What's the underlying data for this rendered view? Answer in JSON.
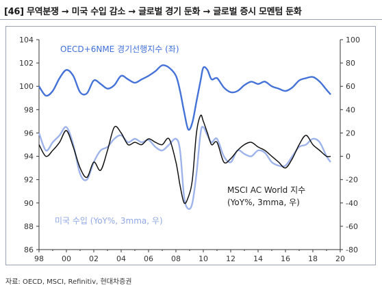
{
  "title": "[46] 무역분쟁 → 미국 수입 감소 → 글로벌 경기 둔화 → 글로벌 증시 모멘텀 둔화",
  "source": "자료: OECD, MSCI, Refinitiv, 현대차증권",
  "colors": {
    "oecd": "#4472d9",
    "msci": "#111111",
    "imports": "#9db3ea"
  },
  "chart_data": {
    "type": "line",
    "x_tick_labels": [
      "98",
      "00",
      "02",
      "04",
      "06",
      "08",
      "10",
      "12",
      "14",
      "16",
      "18",
      "20"
    ],
    "x_range": [
      1998,
      2020
    ],
    "left_axis": {
      "range": [
        86,
        104
      ],
      "ticks": [
        86,
        88,
        90,
        92,
        94,
        96,
        98,
        100,
        102,
        104
      ]
    },
    "right_axis": {
      "range": [
        -80,
        100
      ],
      "ticks": [
        -80,
        -60,
        -40,
        -20,
        0,
        20,
        40,
        60,
        80,
        100
      ]
    },
    "grid": false,
    "annotations": {
      "oecd": "OECD+6NME 경기선행지수 (좌)",
      "msci_line1": "MSCI AC World 지수",
      "msci_line2": "(YoY%, 3mma, 우)",
      "imports": "미국 수입 (YoY%, 3mma, 우)"
    },
    "series": [
      {
        "name": "OECD+6NME 경기선행지수 (좌)",
        "axis": "left",
        "x": [
          1998.0,
          1998.5,
          1999.0,
          1999.5,
          2000.0,
          2000.5,
          2001.0,
          2001.5,
          2002.0,
          2002.5,
          2003.0,
          2003.5,
          2004.0,
          2004.5,
          2005.0,
          2005.5,
          2006.0,
          2006.5,
          2007.0,
          2007.5,
          2008.0,
          2008.3,
          2008.6,
          2008.9,
          2009.2,
          2009.5,
          2009.8,
          2010.0,
          2010.3,
          2010.6,
          2011.0,
          2011.5,
          2012.0,
          2012.5,
          2013.0,
          2013.5,
          2014.0,
          2014.5,
          2015.0,
          2015.5,
          2016.0,
          2016.5,
          2017.0,
          2017.5,
          2018.0,
          2018.5,
          2019.0,
          2019.3
        ],
        "y": [
          100.0,
          99.2,
          99.6,
          100.7,
          101.4,
          100.9,
          99.5,
          99.4,
          100.5,
          100.2,
          99.8,
          100.1,
          100.9,
          100.6,
          100.3,
          100.6,
          100.9,
          101.3,
          101.8,
          101.6,
          100.9,
          99.6,
          97.8,
          96.3,
          96.9,
          98.7,
          100.5,
          101.6,
          101.4,
          100.6,
          100.7,
          99.9,
          99.5,
          99.6,
          100.1,
          100.4,
          100.2,
          100.4,
          100.0,
          99.8,
          99.6,
          99.9,
          100.5,
          100.7,
          100.8,
          100.4,
          99.7,
          99.3
        ]
      },
      {
        "name": "MSCI AC World 지수 (YoY%, 3mma, 우)",
        "axis": "right",
        "x": [
          1998.0,
          1998.5,
          1999.0,
          1999.5,
          2000.0,
          2000.5,
          2001.0,
          2001.5,
          2002.0,
          2002.5,
          2003.0,
          2003.5,
          2004.0,
          2004.5,
          2005.0,
          2005.5,
          2006.0,
          2006.5,
          2007.0,
          2007.5,
          2008.0,
          2008.3,
          2008.6,
          2008.9,
          2009.2,
          2009.5,
          2009.8,
          2010.0,
          2010.3,
          2010.6,
          2011.0,
          2011.5,
          2012.0,
          2012.5,
          2013.0,
          2013.5,
          2014.0,
          2014.5,
          2015.0,
          2015.5,
          2016.0,
          2016.5,
          2017.0,
          2017.5,
          2018.0,
          2018.5,
          2019.0,
          2019.3
        ],
        "y": [
          10,
          0,
          5,
          12,
          22,
          8,
          -10,
          -18,
          -5,
          -12,
          5,
          25,
          20,
          10,
          12,
          10,
          15,
          12,
          10,
          15,
          -5,
          -25,
          -40,
          -35,
          -20,
          20,
          35,
          30,
          20,
          10,
          12,
          -5,
          -2,
          5,
          10,
          12,
          8,
          5,
          0,
          -5,
          -10,
          -2,
          10,
          18,
          10,
          5,
          0,
          0
        ]
      },
      {
        "name": "미국 수입 (YoY%, 3mma, 우)",
        "axis": "right",
        "x": [
          1998.0,
          1998.5,
          1999.0,
          1999.5,
          2000.0,
          2000.5,
          2001.0,
          2001.5,
          2002.0,
          2002.5,
          2003.0,
          2003.5,
          2004.0,
          2004.5,
          2005.0,
          2005.5,
          2006.0,
          2006.5,
          2007.0,
          2007.5,
          2008.0,
          2008.3,
          2008.6,
          2008.9,
          2009.2,
          2009.5,
          2009.8,
          2010.0,
          2010.3,
          2010.6,
          2011.0,
          2011.5,
          2012.0,
          2012.5,
          2013.0,
          2013.5,
          2014.0,
          2014.5,
          2015.0,
          2015.5,
          2016.0,
          2016.5,
          2017.0,
          2017.5,
          2018.0,
          2018.5,
          2019.0,
          2019.3
        ],
        "y": [
          20,
          5,
          12,
          18,
          25,
          10,
          -15,
          -20,
          -5,
          5,
          8,
          15,
          18,
          12,
          15,
          12,
          14,
          8,
          5,
          10,
          15,
          5,
          -35,
          -45,
          -40,
          -15,
          20,
          25,
          18,
          12,
          15,
          0,
          -5,
          5,
          2,
          0,
          5,
          3,
          -5,
          -8,
          -8,
          0,
          8,
          10,
          15,
          12,
          0,
          -5
        ]
      }
    ]
  }
}
